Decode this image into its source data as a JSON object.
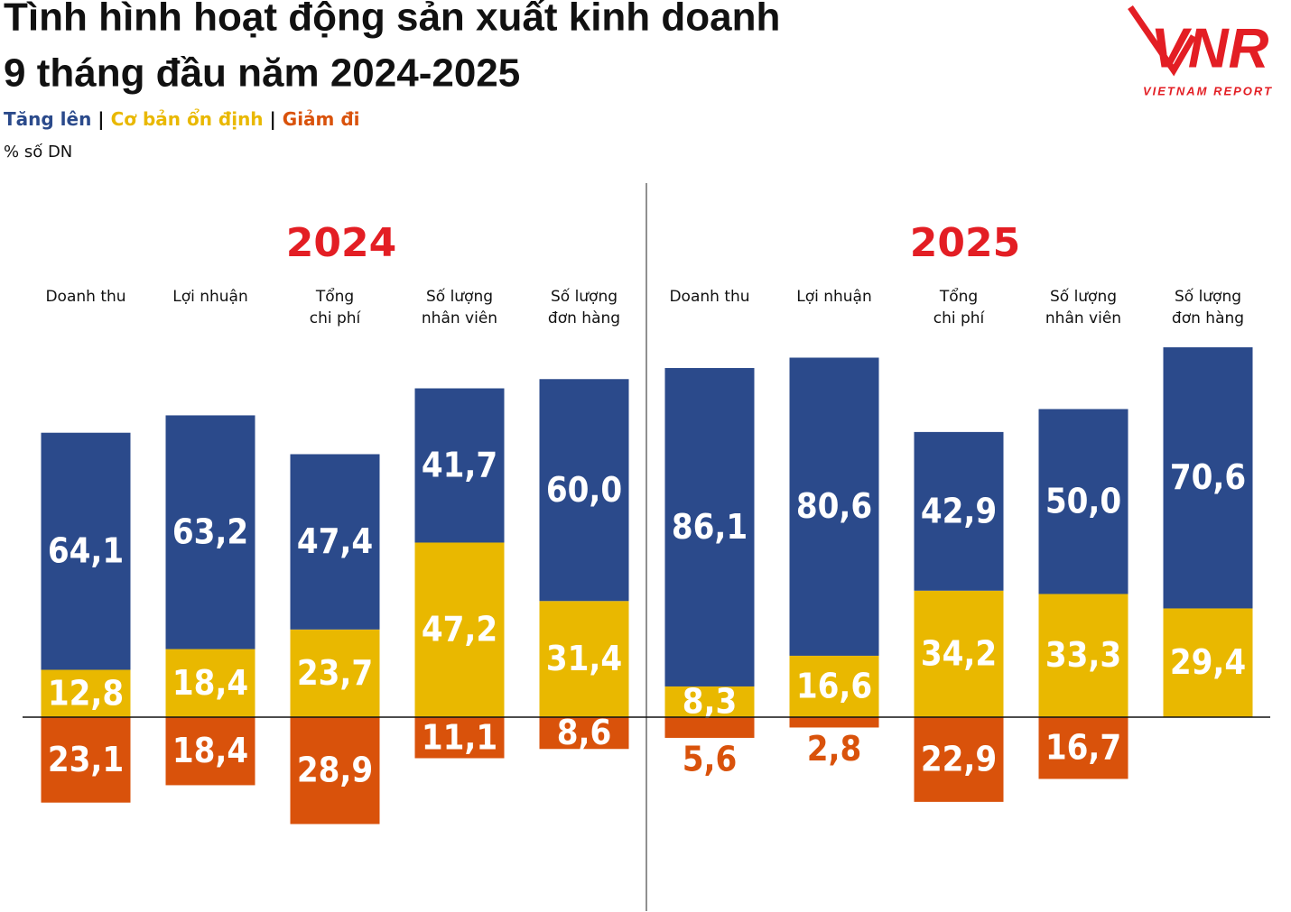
{
  "title": [
    "Tình hình hoạt động sản xuất kinh doanh",
    "9 tháng đầu năm 2024-2025"
  ],
  "unit": "% số DN",
  "logo": {
    "mark": "VNR",
    "text": "VIETNAM REPORT"
  },
  "chart_data": [
    {
      "type": "diverging-stacked-bar",
      "title": "2024",
      "categories": [
        [
          "Doanh thu"
        ],
        [
          "Lợi nhuận"
        ],
        [
          "Tổng",
          "chi phí"
        ],
        [
          "Số lượng",
          "nhân viên"
        ],
        [
          "Số lượng",
          "đơn hàng"
        ]
      ],
      "ylim": [
        -30,
        100
      ],
      "series": [
        {
          "name": "Tăng lên",
          "color": "#2b4a8b",
          "direction": "up",
          "values": [
            64.1,
            63.2,
            47.4,
            41.7,
            60.0
          ],
          "value_labels": [
            "64,1",
            "63,2",
            "47,4",
            "41,7",
            "60,0"
          ]
        },
        {
          "name": "Cơ bản ổn định",
          "color": "#e9b800",
          "direction": "up",
          "values": [
            12.8,
            18.4,
            23.7,
            47.2,
            31.4
          ],
          "value_labels": [
            "12,8",
            "18,4",
            "23,7",
            "47,2",
            "31,4"
          ]
        },
        {
          "name": "Giảm đi",
          "color": "#d9520b",
          "direction": "down",
          "values": [
            23.1,
            18.4,
            28.9,
            11.1,
            8.6
          ],
          "value_labels": [
            "23,1",
            "18,4",
            "28,9",
            "11,1",
            "8,6"
          ]
        }
      ]
    },
    {
      "type": "diverging-stacked-bar",
      "title": "2025",
      "categories": [
        [
          "Doanh thu"
        ],
        [
          "Lợi nhuận"
        ],
        [
          "Tổng",
          "chi phí"
        ],
        [
          "Số lượng",
          "nhân viên"
        ],
        [
          "Số lượng",
          "đơn hàng"
        ]
      ],
      "ylim": [
        -30,
        100
      ],
      "series": [
        {
          "name": "Tăng lên",
          "color": "#2b4a8b",
          "direction": "up",
          "values": [
            86.1,
            80.6,
            42.9,
            50.0,
            70.6
          ],
          "value_labels": [
            "86,1",
            "80,6",
            "42,9",
            "50,0",
            "70,6"
          ]
        },
        {
          "name": "Cơ bản ổn định",
          "color": "#e9b800",
          "direction": "up",
          "values": [
            8.3,
            16.6,
            34.2,
            33.3,
            29.4
          ],
          "value_labels": [
            "8,3",
            "16,6",
            "34,2",
            "33,3",
            "29,4"
          ]
        },
        {
          "name": "Giảm đi",
          "color": "#d9520b",
          "direction": "down",
          "values": [
            5.6,
            2.8,
            22.9,
            16.7,
            null
          ],
          "value_labels": [
            "5,6",
            "2,8",
            "22,9",
            "16,7",
            null
          ]
        }
      ]
    }
  ]
}
